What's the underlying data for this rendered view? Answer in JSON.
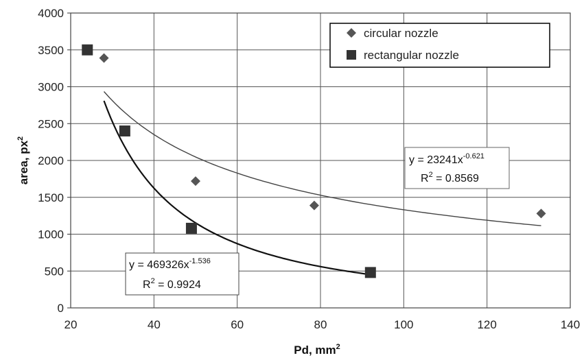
{
  "chart_data": {
    "type": "scatter",
    "xlabel": "Pd, mm",
    "xlabel_sup": "2",
    "ylabel": "area, px",
    "ylabel_sup": "2",
    "xlim": [
      20,
      140
    ],
    "ylim": [
      0,
      4000
    ],
    "x_ticks": [
      "20",
      "40",
      "60",
      "80",
      "100",
      "120",
      "140"
    ],
    "y_ticks": [
      "0",
      "500",
      "1000",
      "1500",
      "2000",
      "2500",
      "3000",
      "3500",
      "4000"
    ],
    "grid": true,
    "legend_position": "top-right",
    "series": [
      {
        "name": "circular nozzle",
        "marker": "diamond",
        "color": "#555555",
        "points": [
          {
            "x": 28,
            "y": 3390
          },
          {
            "x": 50,
            "y": 1720
          },
          {
            "x": 78.5,
            "y": 1390
          },
          {
            "x": 133,
            "y": 1280
          }
        ],
        "fit": {
          "a": 23241,
          "b": -0.621,
          "x_range": [
            28,
            133
          ]
        },
        "equation": "y = 23241x",
        "equation_exp": "-0.621",
        "r2_label": "R",
        "r2_sup": "2",
        "r2_value": " = 0.8569"
      },
      {
        "name": "rectangular nozzle",
        "marker": "square",
        "color": "#333333",
        "points": [
          {
            "x": 24,
            "y": 3500
          },
          {
            "x": 33,
            "y": 2400
          },
          {
            "x": 49,
            "y": 1080
          },
          {
            "x": 92,
            "y": 480
          }
        ],
        "fit": {
          "a": 469326,
          "b": -1.536,
          "x_range": [
            28,
            92
          ]
        },
        "equation": "y = 469326x",
        "equation_exp": "-1.536",
        "r2_label": "R",
        "r2_sup": "2",
        "r2_value": " = 0.9924"
      }
    ]
  }
}
